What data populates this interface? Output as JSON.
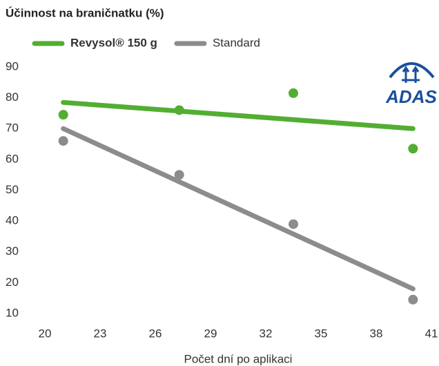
{
  "chart_data": {
    "type": "scatter",
    "title": "Účinnost na braničnatku (%)",
    "x_label": "Počet dní po aplikaci",
    "logo": "ADAS",
    "xlim": [
      20,
      41
    ],
    "xticks": [
      20,
      23,
      26,
      29,
      32,
      35,
      38,
      41
    ],
    "ylim": [
      10,
      90
    ],
    "yticks": [
      10,
      20,
      30,
      40,
      50,
      60,
      70,
      80,
      90
    ],
    "grid": false,
    "legend": "top",
    "series": [
      {
        "name": "Revysol® 150 g",
        "color": "#52ae32",
        "x": [
          21,
          27.3,
          33.5,
          40
        ],
        "values": [
          74.5,
          76,
          81.5,
          63.5
        ],
        "trend": {
          "x": [
            21,
            40
          ],
          "values": [
            78.5,
            70
          ]
        }
      },
      {
        "name": "Standard",
        "color": "#8c8c8c",
        "x": [
          21,
          27.3,
          33.5,
          40
        ],
        "values": [
          66,
          55,
          39,
          14.5
        ],
        "trend": {
          "x": [
            21,
            40
          ],
          "values": [
            70,
            18
          ]
        }
      }
    ]
  }
}
